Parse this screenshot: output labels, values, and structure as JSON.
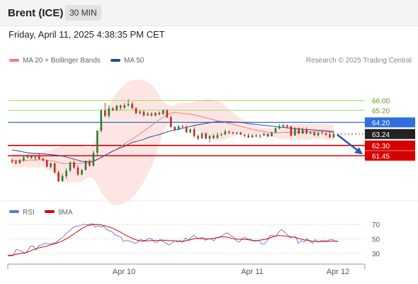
{
  "header": {
    "instrument": "Brent (ICE)",
    "timeframe": "30 MIN",
    "datetime": "Friday, April 11, 2025 4:38:35 PM CET"
  },
  "legend": {
    "ma20": "MA 20 + Bollinger Bands",
    "ma50": "MA 50",
    "copyright": "Research © 2025 Trading Central"
  },
  "colors": {
    "up": "#2e7d32",
    "down": "#c62828",
    "ma20": "#f08080",
    "ma50": "#2a4b8d",
    "band": "#fde2e0",
    "resistance_line": "#a6d96a",
    "pivot": "#2f6fe0",
    "support": "#d50000",
    "last": "#222222",
    "rsi": "#5577dd",
    "rsi_ma": "#e00000"
  },
  "chart_data": [
    {
      "type": "candlestick",
      "x_labels": [
        "Apr 10",
        "Apr 11",
        "Apr 12"
      ],
      "ylim": [
        57.2,
        68.2
      ],
      "levels": [
        {
          "value": 66.0,
          "label": "66.00",
          "kind": "resistance"
        },
        {
          "value": 65.2,
          "label": "65.20",
          "kind": "resistance"
        },
        {
          "value": 64.2,
          "label": "64.20",
          "kind": "pivot"
        },
        {
          "value": 63.24,
          "label": "63.24",
          "kind": "last"
        },
        {
          "value": 62.3,
          "label": "62.30",
          "kind": "support"
        },
        {
          "value": 61.45,
          "label": "61.45",
          "kind": "support"
        }
      ],
      "candles": [
        [
          61.08,
          61.26,
          60.83,
          60.96
        ],
        [
          60.96,
          61.12,
          60.75,
          60.82
        ],
        [
          60.82,
          61.17,
          60.82,
          61.07
        ],
        [
          61.07,
          61.41,
          60.97,
          61.32
        ],
        [
          61.32,
          61.56,
          61.22,
          61.42
        ],
        [
          61.42,
          61.5,
          61.2,
          61.29
        ],
        [
          61.29,
          61.51,
          61.04,
          61.38
        ],
        [
          61.38,
          61.58,
          61.12,
          61.19
        ],
        [
          61.19,
          61.31,
          60.97,
          61.07
        ],
        [
          61.07,
          61.13,
          60.5,
          60.53
        ],
        [
          60.53,
          60.9,
          60.4,
          60.82
        ],
        [
          60.82,
          60.88,
          59.97,
          60.08
        ],
        [
          60.08,
          60.21,
          59.28,
          59.35
        ],
        [
          59.35,
          59.99,
          59.31,
          59.77
        ],
        [
          59.77,
          60.4,
          59.57,
          60.23
        ],
        [
          60.23,
          61.0,
          60.12,
          60.9
        ],
        [
          60.9,
          61.05,
          60.38,
          60.48
        ],
        [
          60.48,
          60.65,
          59.79,
          59.91
        ],
        [
          59.91,
          60.37,
          59.83,
          60.27
        ],
        [
          60.27,
          61.08,
          60.25,
          61.02
        ],
        [
          61.02,
          61.14,
          60.54,
          60.64
        ],
        [
          60.64,
          61.86,
          60.56,
          61.69
        ],
        [
          61.69,
          63.55,
          61.5,
          63.51
        ],
        [
          63.51,
          65.3,
          63.38,
          65.17
        ],
        [
          65.17,
          65.8,
          64.63,
          64.74
        ],
        [
          64.74,
          65.6,
          64.57,
          65.35
        ],
        [
          65.35,
          65.47,
          65.13,
          65.22
        ],
        [
          65.22,
          65.65,
          65.13,
          65.57
        ],
        [
          65.57,
          65.67,
          65.22,
          65.41
        ],
        [
          65.41,
          65.79,
          65.31,
          65.61
        ],
        [
          65.61,
          66.11,
          65.48,
          65.72
        ],
        [
          65.72,
          65.9,
          65.3,
          65.36
        ],
        [
          65.36,
          65.44,
          64.89,
          64.96
        ],
        [
          64.96,
          65.22,
          64.87,
          65.08
        ],
        [
          65.08,
          65.17,
          64.68,
          64.78
        ],
        [
          64.78,
          65.06,
          64.74,
          64.91
        ],
        [
          64.91,
          65.04,
          64.7,
          64.76
        ],
        [
          64.76,
          65.03,
          64.7,
          64.99
        ],
        [
          64.99,
          65.11,
          64.77,
          64.87
        ],
        [
          64.87,
          65.28,
          64.84,
          65.19
        ],
        [
          65.19,
          65.27,
          64.57,
          64.62
        ],
        [
          64.62,
          64.74,
          63.78,
          63.82
        ],
        [
          63.82,
          63.89,
          63.52,
          63.59
        ],
        [
          63.59,
          63.96,
          63.55,
          63.89
        ],
        [
          63.89,
          64.02,
          63.73,
          63.83
        ],
        [
          63.83,
          64.0,
          63.33,
          63.39
        ],
        [
          63.39,
          63.71,
          63.29,
          63.63
        ],
        [
          63.63,
          63.79,
          62.95,
          63.07
        ],
        [
          63.07,
          63.22,
          62.76,
          62.87
        ],
        [
          62.87,
          63.38,
          62.84,
          63.3
        ],
        [
          63.3,
          63.35,
          62.8,
          62.86
        ],
        [
          62.86,
          63.14,
          62.53,
          63.08
        ],
        [
          63.08,
          63.22,
          62.81,
          62.92
        ],
        [
          62.92,
          63.34,
          62.86,
          63.16
        ],
        [
          63.16,
          63.34,
          63.06,
          63.22
        ],
        [
          63.22,
          63.61,
          63.14,
          63.46
        ],
        [
          63.46,
          63.51,
          63.23,
          63.37
        ],
        [
          63.37,
          63.43,
          63.21,
          63.29
        ],
        [
          63.29,
          63.4,
          63.17,
          63.36
        ],
        [
          63.36,
          63.43,
          63.15,
          63.2
        ],
        [
          63.2,
          63.23,
          62.96,
          63.12
        ],
        [
          63.12,
          63.29,
          62.93,
          62.96
        ],
        [
          62.96,
          63.24,
          62.95,
          63.13
        ],
        [
          63.13,
          63.24,
          62.97,
          63.07
        ],
        [
          63.07,
          63.23,
          62.91,
          63.12
        ],
        [
          63.12,
          63.35,
          63.09,
          63.26
        ],
        [
          63.26,
          63.27,
          62.97,
          63.06
        ],
        [
          63.06,
          63.42,
          63.05,
          63.37
        ],
        [
          63.37,
          63.78,
          63.32,
          63.71
        ],
        [
          63.71,
          64.07,
          63.63,
          63.86
        ],
        [
          63.86,
          64.1,
          63.74,
          63.95
        ],
        [
          63.95,
          64.03,
          63.68,
          63.86
        ],
        [
          63.86,
          63.93,
          63.04,
          63.11
        ],
        [
          63.11,
          63.8,
          63.11,
          63.71
        ],
        [
          63.71,
          63.79,
          63.21,
          63.28
        ],
        [
          63.28,
          63.77,
          63.24,
          63.62
        ],
        [
          63.62,
          63.79,
          63.22,
          63.28
        ],
        [
          63.28,
          63.45,
          63.24,
          63.39
        ],
        [
          63.39,
          63.42,
          63.08,
          63.14
        ],
        [
          63.14,
          63.41,
          63.04,
          63.34
        ],
        [
          63.34,
          63.48,
          63.26,
          63.31
        ],
        [
          63.31,
          63.35,
          63.11,
          63.19
        ],
        [
          63.19,
          63.51,
          62.91,
          62.97
        ],
        [
          62.97,
          63.47,
          62.89,
          63.24
        ]
      ],
      "ma20": [
        61.05,
        61.05,
        61.04,
        61.05,
        61.07,
        61.09,
        61.11,
        61.12,
        61.12,
        61.08,
        61.05,
        60.99,
        60.9,
        60.82,
        60.79,
        60.81,
        60.82,
        60.8,
        60.82,
        60.87,
        60.89,
        60.96,
        61.11,
        61.32,
        61.47,
        61.64,
        61.81,
        61.99,
        62.2,
        62.43,
        62.63,
        62.82,
        63.02,
        63.26,
        63.48,
        63.71,
        63.94,
        64.18,
        64.4,
        64.62,
        64.82,
        64.96,
        65.02,
        64.98,
        64.95,
        64.92,
        64.88,
        64.81,
        64.74,
        64.66,
        64.58,
        64.49,
        64.42,
        64.34,
        64.26,
        64.19,
        64.11,
        64.04,
        63.96,
        63.88,
        63.79,
        63.71,
        63.63,
        63.55,
        63.5,
        63.45,
        63.39,
        63.35,
        63.33,
        63.35,
        63.37,
        63.39,
        63.38,
        63.4,
        63.4,
        63.42,
        63.43,
        63.44,
        63.45,
        63.45,
        63.45,
        63.43,
        63.4,
        63.38
      ],
      "band_upper": [
        61.62,
        61.6,
        61.58,
        61.59,
        61.63,
        61.69,
        61.74,
        61.76,
        61.76,
        61.83,
        61.92,
        62.03,
        62.17,
        62.3,
        62.36,
        62.33,
        62.34,
        62.35,
        62.31,
        62.16,
        62.1,
        62.37,
        63.12,
        64.21,
        64.92,
        65.64,
        66.19,
        66.63,
        66.99,
        67.27,
        67.54,
        67.67,
        67.72,
        67.73,
        67.66,
        67.53,
        67.31,
        66.93,
        66.4,
        65.9,
        65.71,
        65.54,
        65.65,
        65.77,
        65.79,
        65.8,
        65.82,
        65.92,
        66.02,
        66.06,
        66.12,
        66.1,
        66.06,
        65.98,
        65.83,
        65.55,
        65.28,
        65.03,
        64.77,
        64.51,
        64.33,
        64.18,
        64.05,
        63.91,
        63.78,
        63.73,
        63.74,
        63.71,
        63.74,
        63.83,
        63.91,
        64.0,
        64.03,
        64.06,
        64.05,
        64.06,
        64.08,
        64.08,
        64.06,
        64.07,
        64.07,
        64.06,
        64.04,
        64.03
      ],
      "band_lower": [
        60.48,
        60.5,
        60.5,
        60.51,
        60.51,
        60.49,
        60.48,
        60.48,
        60.48,
        60.33,
        60.18,
        59.95,
        59.63,
        59.34,
        59.22,
        59.29,
        59.3,
        59.25,
        59.33,
        59.58,
        59.68,
        59.55,
        59.1,
        58.43,
        58.02,
        57.64,
        57.43,
        57.35,
        57.41,
        57.59,
        57.72,
        57.97,
        58.32,
        58.79,
        59.3,
        59.89,
        60.57,
        61.43,
        62.4,
        63.34,
        63.93,
        64.38,
        64.39,
        64.19,
        64.11,
        64.04,
        63.94,
        63.7,
        63.46,
        63.26,
        63.04,
        62.88,
        62.78,
        62.7,
        62.69,
        62.83,
        62.94,
        63.05,
        63.15,
        63.25,
        63.25,
        63.24,
        63.21,
        63.19,
        63.22,
        63.17,
        63.04,
        62.99,
        62.92,
        62.87,
        62.83,
        62.78,
        62.73,
        62.74,
        62.75,
        62.78,
        62.78,
        62.8,
        62.84,
        62.83,
        62.83,
        62.8,
        62.76,
        62.73
      ],
      "ma50": [
        61.92,
        61.88,
        61.82,
        61.76,
        61.7,
        61.66,
        61.63,
        61.62,
        61.61,
        61.58,
        61.54,
        61.51,
        61.48,
        61.42,
        61.34,
        61.25,
        61.17,
        61.08,
        60.99,
        60.96,
        60.95,
        61.02,
        61.16,
        61.3,
        61.49,
        61.66,
        61.84,
        61.97,
        62.11,
        62.24,
        62.39,
        62.55,
        62.63,
        62.71,
        62.8,
        62.94,
        63.03,
        63.12,
        63.19,
        63.3,
        63.41,
        63.51,
        63.57,
        63.64,
        63.72,
        63.8,
        63.86,
        63.94,
        64.0,
        64.06,
        64.12,
        64.17,
        64.22,
        64.27,
        64.27,
        64.26,
        64.25,
        64.23,
        64.22,
        64.19,
        64.16,
        64.11,
        64.07,
        64.03,
        63.99,
        63.96,
        63.92,
        63.89,
        63.85,
        63.82,
        63.79,
        63.76,
        63.72,
        63.69,
        63.66,
        63.63,
        63.61,
        63.59,
        63.57,
        63.55,
        63.53,
        63.5,
        63.47,
        63.45
      ],
      "projection": {
        "from": 63.24,
        "to": 61.45
      }
    },
    {
      "type": "line",
      "series_names": [
        "RSI",
        "9MA"
      ],
      "ylim": [
        21,
        77
      ],
      "y_ticks": [
        30,
        50,
        70
      ],
      "rsi": [
        26.47,
        26.48,
        26.69,
        35.57,
        34.14,
        32.9,
        30.07,
        33.2,
        39.67,
        40.41,
        34.71,
        40.9,
        41.56,
        43.96,
        43.52,
        43.16,
        44.06,
        44.6,
        48.0,
        51.15,
        54.14,
        58.42,
        61.6,
        65.42,
        67.58,
        67.9,
        69.08,
        70.42,
        69.42,
        70.35,
        71.17,
        66.36,
        68.11,
        66.5,
        67.25,
        62.97,
        61.11,
        59.86,
        55.71,
        54.07,
        52.93,
        46.44,
        47.93,
        47.2,
        46.1,
        43.74,
        45.37,
        49.54,
        47.82,
        48.06,
        50.73,
        49.78,
        45.29,
        45.67,
        49.17,
        46.33,
        44.66,
        41.57,
        43.59,
        47.38,
        46.08,
        47.7,
        45.4,
        51.59,
        48.09,
        51.92,
        55.18,
        51.57,
        50.64,
        51.99,
        48.14,
        50.15,
        49.97,
        47.46,
        52.19,
        52.58,
        54.8,
        57.23,
        58.36,
        54.26,
        52.78,
        47.51,
        45.44,
        50.25,
        52.43,
        49.56,
        49.86,
        46.87,
        46.91,
        47.97,
        42.85,
        43.03,
        48.11,
        54.94,
        54.42,
        53.69,
        59.67,
        62.93,
        59.7,
        55.98,
        51.87,
        52.61,
        52.76,
        43.85,
        47.48,
        45.5,
        50.62,
        46.68,
        43.8,
        49.08,
        45.64,
        47.53,
        48.22,
        46.79,
        48.72,
        49.35,
        46.99,
        45.92
      ],
      "ma9": [
        27.0,
        27.38,
        27.87,
        28.77,
        29.42,
        30.11,
        30.73,
        31.74,
        33.21,
        35.04,
        36.46,
        37.65,
        38.38,
        39.31,
        40.4,
        41.57,
        42.51,
        43.67,
        45.03,
        46.72,
        48.57,
        50.68,
        53.11,
        55.78,
        58.3,
        61.07,
        63.67,
        66.05,
        67.99,
        69.04,
        69.64,
        70.04,
        69.95,
        69.44,
        68.55,
        67.49,
        66.38,
        64.88,
        63.05,
        61.23,
        59.09,
        56.82,
        54.65,
        52.71,
        50.94,
        49.34,
        48.04,
        47.27,
        46.99,
        47.22,
        47.43,
        47.84,
        47.82,
        47.86,
        48.16,
        48.2,
        48.03,
        47.67,
        47.6,
        47.37,
        47.01,
        46.59,
        46.84,
        47.42,
        48.07,
        49.07,
        50.18,
        50.5,
        50.55,
        50.39,
        50.14,
        49.88,
        50.31,
        50.91,
        51.55,
        52.23,
        52.91,
        52.74,
        52.2,
        51.24,
        50.18,
        49.76,
        49.52,
        49.53,
        49.38,
        48.93,
        48.38,
        47.68,
        47.6,
        48.15,
        48.62,
        49.18,
        50.12,
        51.57,
        52.96,
        54.22,
        54.7,
        54.39,
        54.12,
        53.55,
        53.06,
        52.55,
        51.97,
        50.53,
        49.59,
        48.58,
        48.2,
        47.53,
        46.7,
        46.43,
        46.12,
        46.22,
        46.31,
        46.44,
        46.8,
        46.88,
        46.81,
        46.73
      ]
    }
  ],
  "rsi_legend": {
    "rsi": "RSI",
    "ma9": "9MA"
  }
}
